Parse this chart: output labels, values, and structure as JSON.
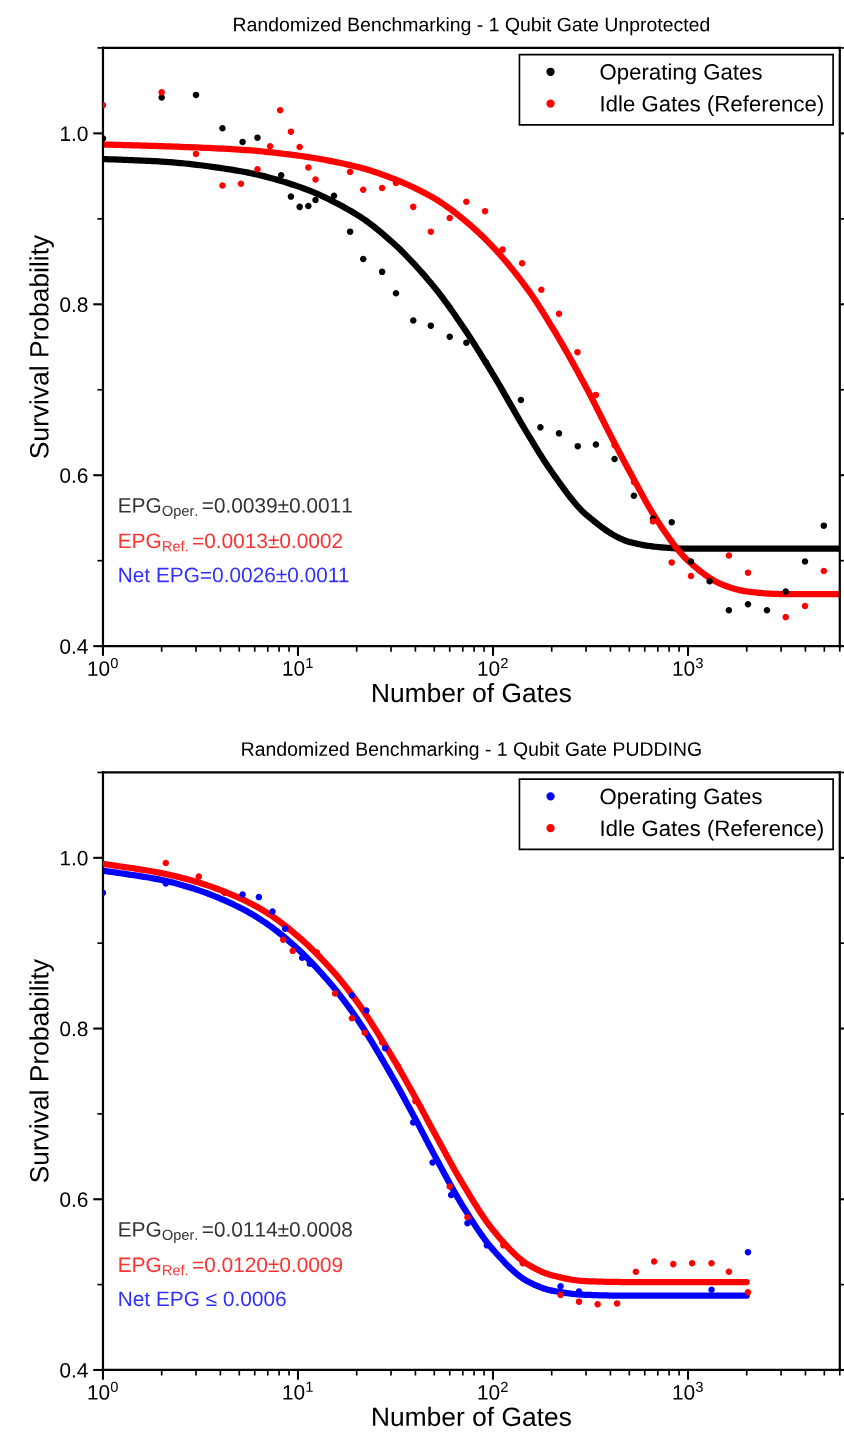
{
  "chart_data": [
    {
      "type": "scatter",
      "title": "Randomized Benchmarking - 1 Qubit Gate Unprotected",
      "xlabel": "Number of Gates",
      "ylabel": "Survival Probability",
      "log": "x",
      "xlim": [
        1,
        6000
      ],
      "xticks": [
        {
          "value": 1,
          "label": "10$^{0}$"
        },
        {
          "value": 10,
          "label": "10$^{1}$"
        },
        {
          "value": 100,
          "label": "10$^{2}$"
        },
        {
          "value": 1000,
          "label": "10$^{3}$"
        }
      ],
      "ylim": [
        0.4,
        1.1
      ],
      "yticks": [
        0.4,
        0.6,
        0.8,
        {
          "value": 1.0,
          "label": "1.0"
        }
      ],
      "grid": false,
      "legend": "top right",
      "marker": "circle",
      "series": [
        {
          "name": "Operating Gates",
          "color": "#000000",
          "x": [
            1,
            2,
            3,
            4.1,
            5.2,
            6.2,
            8.2,
            9.2,
            10.2,
            11.3,
            12.3,
            15.3,
            18.5,
            21.6,
            27,
            31.8,
            39,
            48,
            60,
            73,
            92,
            139,
            175,
            218,
            272,
            337,
            420,
            528,
            661,
            825,
            1035,
            1290,
            1620,
            2030,
            2540,
            3170,
            3980,
            4970
          ],
          "values": [
            0.994,
            1.042,
            1.045,
            1.006,
            0.99,
            0.995,
            0.951,
            0.926,
            0.914,
            0.915,
            0.922,
            0.927,
            0.885,
            0.853,
            0.838,
            0.813,
            0.781,
            0.775,
            0.762,
            0.755,
            0.732,
            0.688,
            0.656,
            0.649,
            0.634,
            0.636,
            0.619,
            0.576,
            0.549,
            0.545,
            0.499,
            0.476,
            0.442,
            0.449,
            0.442,
            0.464,
            0.499,
            0.541
          ]
        },
        {
          "name": "Idle Gates (Reference)",
          "color": "#ff0000",
          "x": [
            1,
            2,
            3,
            4.1,
            5.1,
            6.2,
            7.2,
            8.1,
            9.2,
            10.2,
            11.3,
            12.3,
            18.5,
            21.6,
            27,
            31.8,
            39,
            48,
            60,
            73,
            91,
            112,
            141,
            177,
            218,
            271,
            337,
            420,
            528,
            661,
            825,
            1035,
            1620,
            2030,
            3170,
            3980,
            4970
          ],
          "values": [
            1.033,
            1.048,
            0.976,
            0.939,
            0.941,
            0.958,
            0.985,
            1.027,
            1.002,
            0.984,
            0.96,
            0.946,
            0.955,
            0.934,
            0.936,
            0.942,
            0.914,
            0.885,
            0.901,
            0.92,
            0.909,
            0.864,
            0.848,
            0.817,
            0.789,
            0.744,
            0.694,
            0.635,
            0.592,
            0.546,
            0.498,
            0.482,
            0.506,
            0.486,
            0.434,
            0.447,
            0.488
          ]
        },
        {
          "type": "line",
          "marker": "none",
          "color": "#000000",
          "x": [
            1,
            2,
            5,
            10,
            20,
            30,
            50,
            70,
            100,
            150,
            200,
            300,
            500,
            700,
            1000,
            2000,
            6000
          ],
          "values": [
            0.97,
            0.967,
            0.956,
            0.938,
            0.905,
            0.874,
            0.82,
            0.774,
            0.718,
            0.649,
            0.604,
            0.554,
            0.522,
            0.516,
            0.514,
            0.514,
            0.514
          ]
        },
        {
          "type": "line",
          "marker": "none",
          "color": "#ff0000",
          "x": [
            1,
            2,
            5,
            10,
            20,
            30,
            50,
            70,
            100,
            150,
            200,
            300,
            400,
            500,
            700,
            1000,
            1500,
            2000,
            3000,
            6000
          ],
          "values": [
            0.987,
            0.985,
            0.981,
            0.974,
            0.961,
            0.948,
            0.924,
            0.9,
            0.867,
            0.818,
            0.774,
            0.703,
            0.647,
            0.605,
            0.546,
            0.5,
            0.472,
            0.464,
            0.461,
            0.461
          ]
        }
      ],
      "annotations": [
        "EPG$_{Oper.}$=0.0039±0.0011",
        "EPG$_{Ref.}$=0.0013±0.0002",
        "Net EPG=0.0026±0.0011"
      ]
    },
    {
      "type": "scatter",
      "title": "Randomized Benchmarking - 1 Qubit Gate PUDDING",
      "xlabel": "Number of Gates",
      "ylabel": "Survival Probability",
      "log": "x",
      "xlim": [
        1,
        6000
      ],
      "xticks": [
        {
          "value": 1,
          "label": "10$^{0}$"
        },
        {
          "value": 10,
          "label": "10$^{1}$"
        },
        {
          "value": 100,
          "label": "10$^{2}$"
        },
        {
          "value": 1000,
          "label": "10$^{3}$"
        }
      ],
      "ylim": [
        0.4,
        1.1
      ],
      "yticks": [
        0.4,
        0.6,
        0.8,
        {
          "value": 1.0,
          "label": "1.0"
        }
      ],
      "grid": false,
      "legend": "top right",
      "marker": "circle",
      "series": [
        {
          "name": "Operating Gates",
          "color": "#0000ff",
          "x": [
            1,
            2.1,
            5.2,
            6.3,
            7.4,
            8.6,
            10.5,
            11.5,
            18.9,
            22.4,
            28,
            39,
            49,
            61,
            74,
            93,
            222,
            276,
            1320,
            2030
          ],
          "values": [
            0.959,
            0.97,
            0.957,
            0.954,
            0.937,
            0.917,
            0.883,
            0.876,
            0.839,
            0.821,
            0.777,
            0.69,
            0.643,
            0.605,
            0.572,
            0.546,
            0.498,
            0.492,
            0.494,
            0.538
          ]
        },
        {
          "name": "Idle Gates (Reference)",
          "color": "#ff0000",
          "x": [
            1,
            2.1,
            3.1,
            4.2,
            8.4,
            9.4,
            12.5,
            15.5,
            18.9,
            22,
            27,
            32.5,
            40,
            60,
            74,
            113,
            142,
            222,
            276,
            344,
            433,
            540,
            670,
            840,
            1050,
            1320,
            1620,
            2030
          ],
          "values": [
            0.993,
            0.994,
            0.978,
            0.959,
            0.904,
            0.891,
            0.889,
            0.841,
            0.812,
            0.795,
            0.784,
            0.756,
            0.715,
            0.615,
            0.579,
            0.546,
            0.525,
            0.488,
            0.48,
            0.477,
            0.478,
            0.515,
            0.527,
            0.524,
            0.525,
            0.525,
            0.515,
            0.491
          ]
        },
        {
          "type": "line",
          "marker": "none",
          "color": "#0000ff",
          "x": [
            1,
            2,
            3,
            5,
            7,
            10,
            15,
            20,
            30,
            40,
            50,
            70,
            100,
            150,
            200,
            300,
            500,
            2000
          ],
          "values": [
            0.985,
            0.974,
            0.963,
            0.942,
            0.922,
            0.893,
            0.85,
            0.812,
            0.746,
            0.694,
            0.652,
            0.592,
            0.541,
            0.504,
            0.493,
            0.488,
            0.487,
            0.487
          ]
        },
        {
          "type": "line",
          "marker": "none",
          "color": "#ff0000",
          "x": [
            1,
            2,
            3,
            5,
            7,
            10,
            15,
            20,
            30,
            40,
            50,
            70,
            100,
            150,
            200,
            300,
            500,
            2000
          ],
          "values": [
            0.993,
            0.982,
            0.972,
            0.953,
            0.935,
            0.908,
            0.868,
            0.832,
            0.769,
            0.719,
            0.678,
            0.618,
            0.564,
            0.524,
            0.511,
            0.504,
            0.503,
            0.503
          ]
        }
      ],
      "annotations": [
        "EPG$_{Oper.}$=0.0114±0.0008",
        "EPG$_{Ref.}$=0.0120±0.0009",
        "Net EPG ≤ 0.0006"
      ]
    }
  ]
}
